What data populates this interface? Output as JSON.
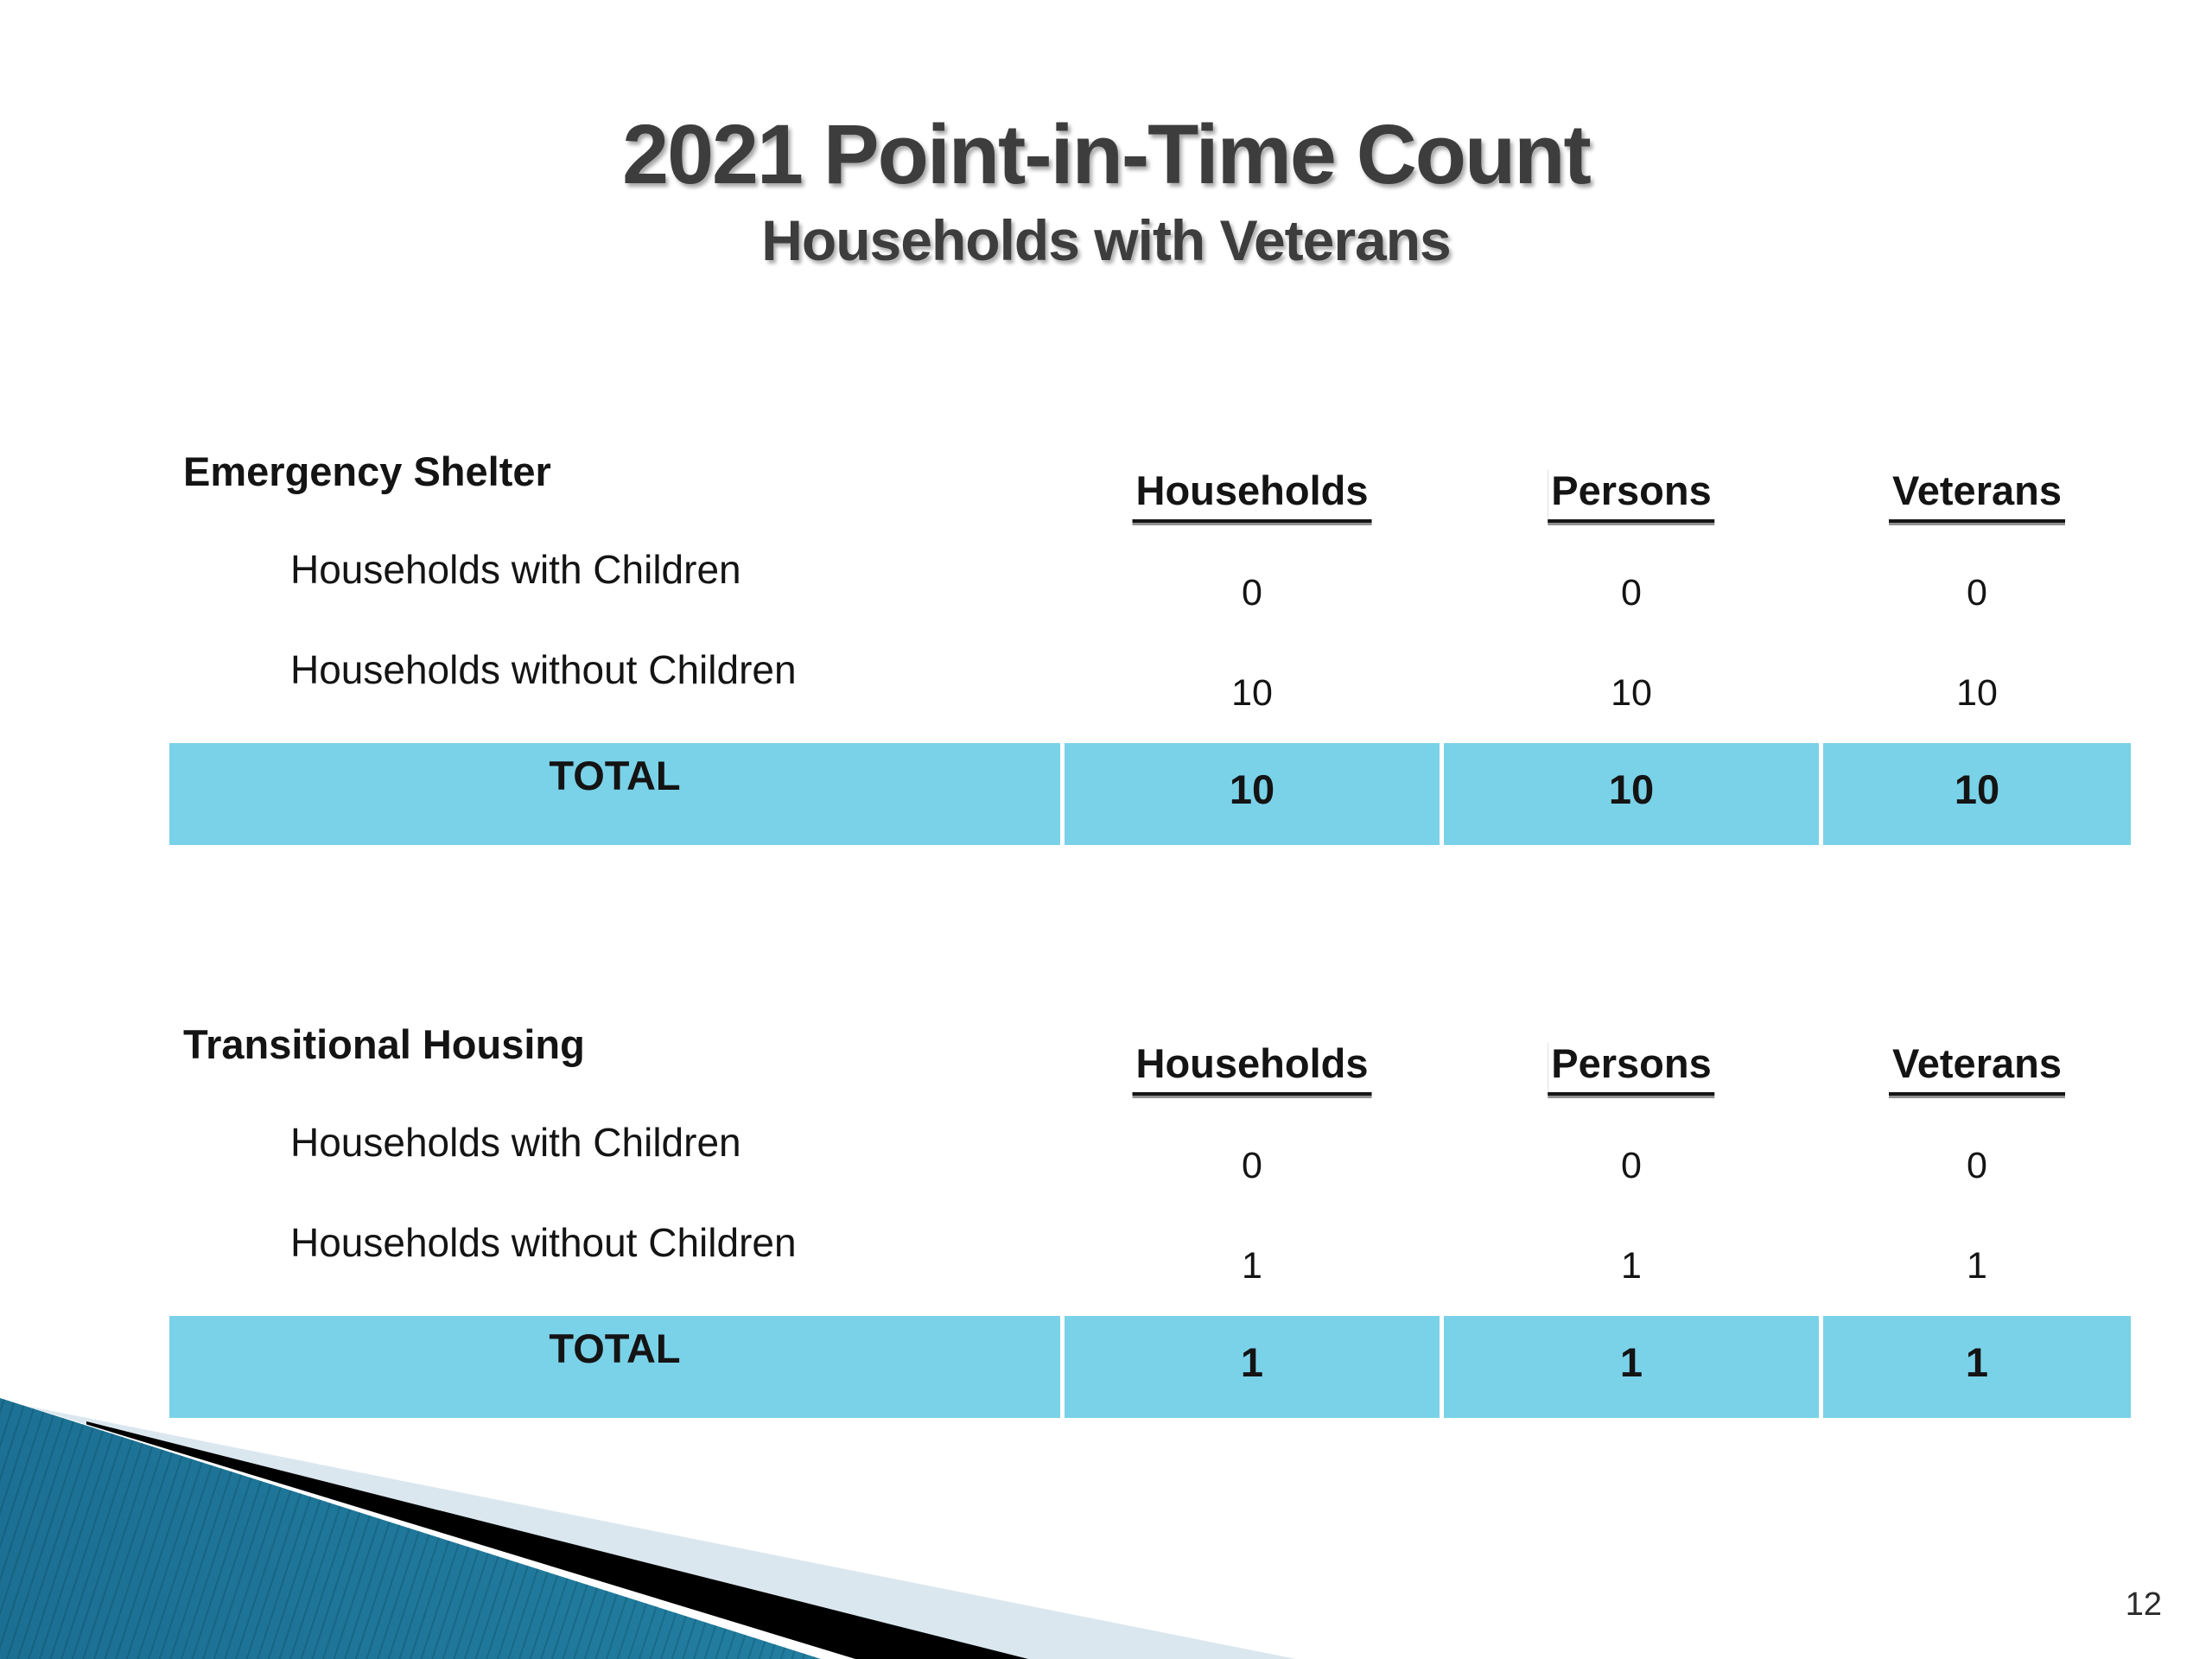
{
  "slide": {
    "title": "2021 Point-in-Time Count",
    "subtitle": "Households with Veterans",
    "page_number": "12"
  },
  "tables": [
    {
      "section_title": "Emergency Shelter",
      "columns": [
        "Households",
        "Persons",
        "Veterans"
      ],
      "rows": [
        {
          "label": "Households with Children",
          "values": [
            "0",
            "0",
            "0"
          ]
        },
        {
          "label": "Households without Children",
          "values": [
            "10",
            "10",
            "10"
          ]
        }
      ],
      "total": {
        "label": "TOTAL",
        "values": [
          "10",
          "10",
          "10"
        ]
      }
    },
    {
      "section_title": "Transitional Housing",
      "columns": [
        "Households",
        "Persons",
        "Veterans"
      ],
      "rows": [
        {
          "label": "Households with Children",
          "values": [
            "0",
            "0",
            "0"
          ]
        },
        {
          "label": "Households without Children",
          "values": [
            "1",
            "1",
            "1"
          ]
        }
      ],
      "total": {
        "label": "TOTAL",
        "values": [
          "1",
          "1",
          "1"
        ]
      }
    }
  ],
  "colors": {
    "total_row_bg": "#7ad2e8",
    "decoration_teal_dark": "#1b6f92",
    "decoration_teal_light": "#3ba6c6",
    "decoration_pale": "#dbe7ef",
    "decoration_black": "#000000",
    "title_gray": "#3d3d3d"
  }
}
